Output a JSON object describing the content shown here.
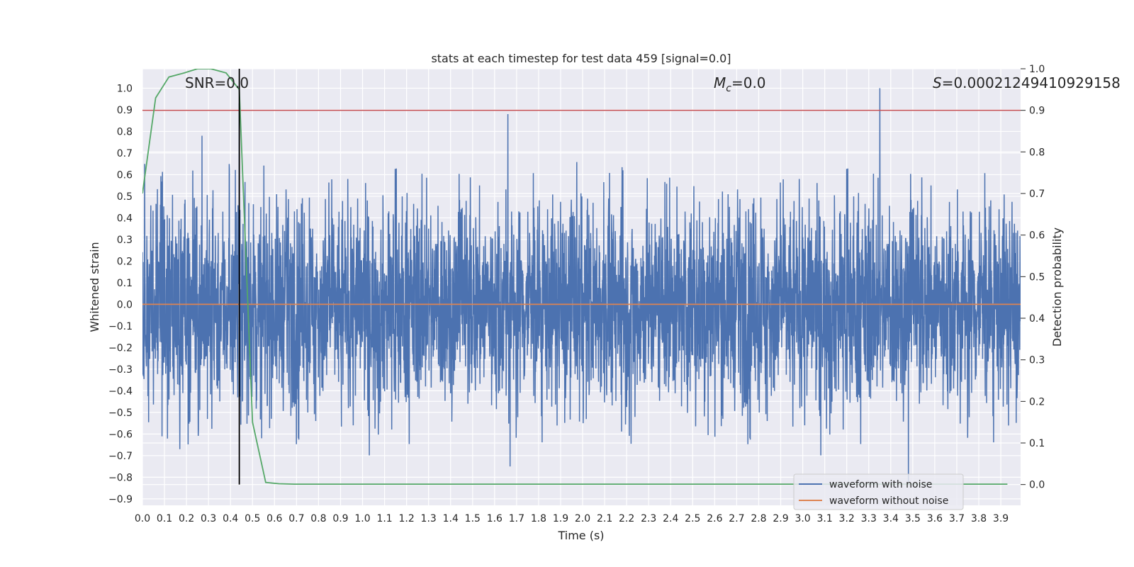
{
  "chart_data": {
    "type": "line",
    "title": "stats at each timestep for test data 459 [signal=0.0]",
    "xlabel": "Time (s)",
    "ylabel_left": "Whitened strain",
    "ylabel_right": "Detection probability",
    "xlim": [
      0.0,
      3.99
    ],
    "ylim_left": [
      -0.93,
      1.09
    ],
    "ylim_right": [
      -0.05,
      1.0
    ],
    "x_ticks": [
      "0.0",
      "0.1",
      "0.2",
      "0.3",
      "0.4",
      "0.5",
      "0.6",
      "0.7",
      "0.8",
      "0.9",
      "1.0",
      "1.1",
      "1.2",
      "1.3",
      "1.4",
      "1.5",
      "1.6",
      "1.7",
      "1.8",
      "1.9",
      "2.0",
      "2.1",
      "2.2",
      "2.3",
      "2.4",
      "2.5",
      "2.6",
      "2.7",
      "2.8",
      "2.9",
      "3.0",
      "3.1",
      "3.2",
      "3.3",
      "3.4",
      "3.5",
      "3.6",
      "3.7",
      "3.8",
      "3.9"
    ],
    "y_ticks_left": [
      "1.0",
      "0.9",
      "0.8",
      "0.7",
      "0.6",
      "0.5",
      "0.4",
      "0.3",
      "0.2",
      "0.1",
      "0.0",
      "−0.1",
      "−0.2",
      "−0.3",
      "−0.4",
      "−0.5",
      "−0.6",
      "−0.7",
      "−0.8",
      "−0.9"
    ],
    "y_ticks_right": [
      "1.0",
      "0.9",
      "0.8",
      "0.7",
      "0.6",
      "0.5",
      "0.4",
      "0.3",
      "0.2",
      "0.1",
      "0.0"
    ],
    "annotations": {
      "snr": "SNR=0.0",
      "mc_symbol": "M",
      "mc_sub": "c",
      "mc_value": "=0.0",
      "s_symbol": "S",
      "s_value": "=0.00021249410929158"
    },
    "grid": true,
    "legend_position": "lower right",
    "legend": [
      {
        "label": "waveform with noise",
        "color": "#4c72b0"
      },
      {
        "label": "waveform without noise",
        "color": "#dd8452"
      }
    ],
    "threshold": {
      "value": 0.9,
      "axis": "right",
      "color": "#c44e52"
    },
    "marker_time": 0.44,
    "noisy_waveform": {
      "color": "#4c72b0",
      "envelope_level": 0.4,
      "notable_peaks": [
        {
          "x": 0.01,
          "y": 0.65
        },
        {
          "x": 0.27,
          "y": 0.78
        },
        {
          "x": 1.66,
          "y": 0.88
        },
        {
          "x": 1.67,
          "y": -0.75
        },
        {
          "x": 3.35,
          "y": 1.0
        },
        {
          "x": 3.48,
          "y": -0.82
        },
        {
          "x": 0.17,
          "y": -0.67
        },
        {
          "x": 0.44,
          "y": 0.93
        }
      ]
    },
    "clean_waveform": {
      "color": "#dd8452",
      "value": 0.0
    },
    "probability_series": {
      "color": "#55a868",
      "x": [
        0.0,
        0.06,
        0.12,
        0.19,
        0.25,
        0.31,
        0.38,
        0.44,
        0.5,
        0.56,
        0.62,
        0.69,
        0.75,
        1.0,
        1.5,
        2.0,
        2.5,
        3.0,
        3.5,
        3.93
      ],
      "y": [
        0.7,
        0.93,
        0.98,
        0.99,
        1.0,
        1.0,
        0.99,
        0.95,
        0.15,
        0.005,
        0.002,
        0.001,
        0.001,
        0.001,
        0.001,
        0.001,
        0.001,
        0.001,
        0.001,
        0.001
      ]
    }
  }
}
